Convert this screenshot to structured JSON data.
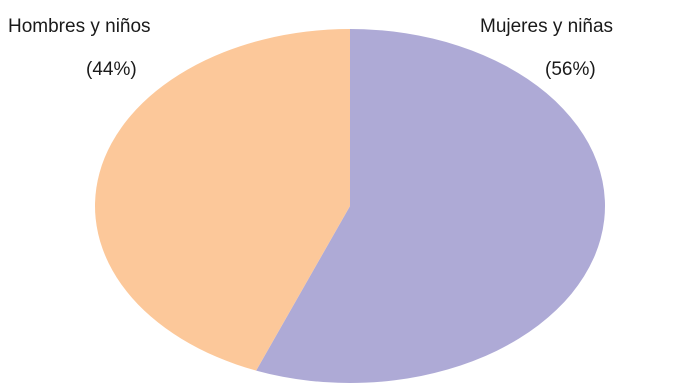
{
  "chart_data": {
    "type": "pie",
    "title": "",
    "start_angle_deg": 0,
    "direction": "clockwise",
    "slices": [
      {
        "name": "Mujeres y niñas",
        "value": 56,
        "label": "(56%)",
        "color": "#aeaad6"
      },
      {
        "name": "Hombres y niños",
        "value": 44,
        "label": "(44%)",
        "color": "#fcc89a"
      }
    ]
  }
}
